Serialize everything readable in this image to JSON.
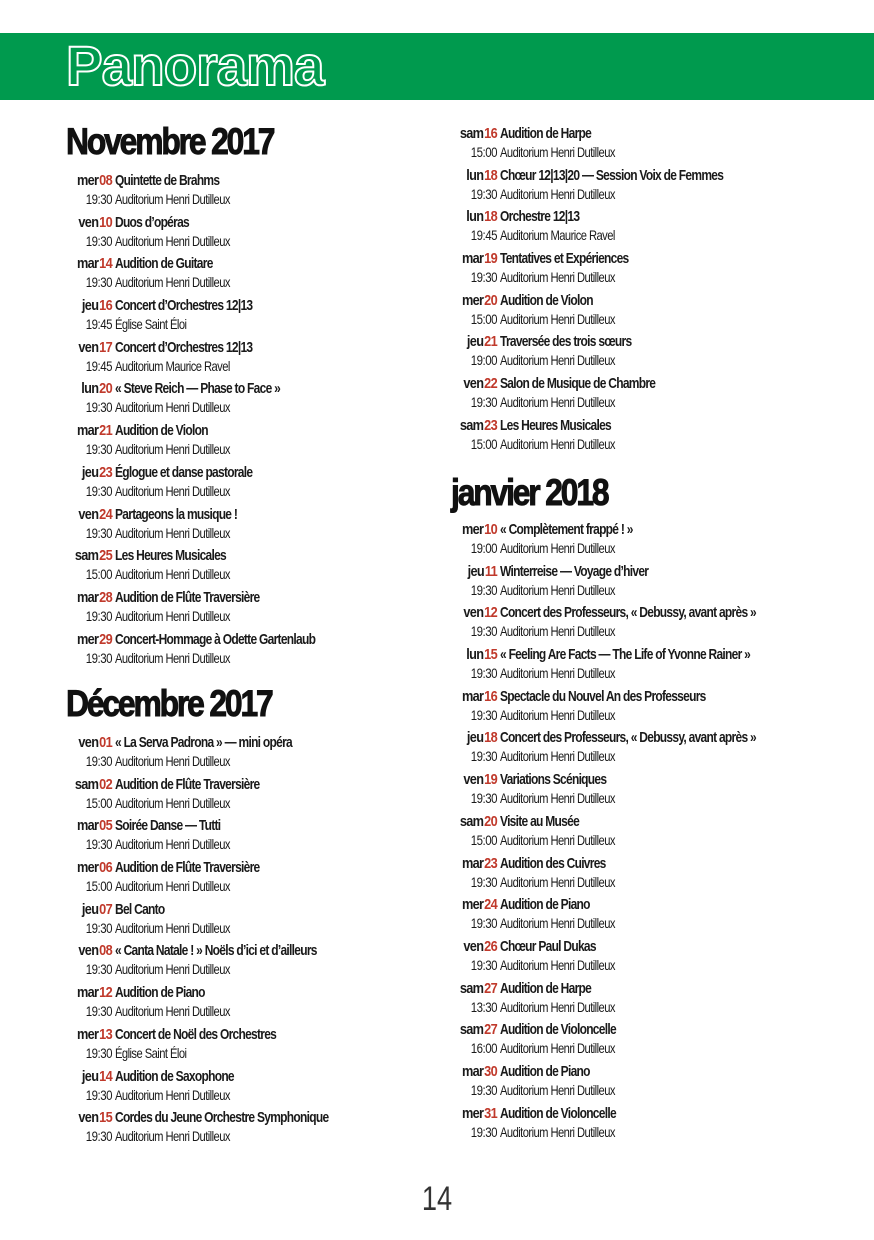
{
  "header": {
    "title": "Panorama",
    "band_color": "#009a4e",
    "date_color": "#c0392b"
  },
  "page_number": "14",
  "months": [
    {
      "title": "Novembre 2017",
      "events": [
        {
          "day": "mer",
          "num": "08",
          "title": "Quintette de Brahms",
          "time": "19:30",
          "venue": "Auditorium Henri Dutilleux"
        },
        {
          "day": "ven",
          "num": "10",
          "title": "Duos d’opéras",
          "time": "19:30",
          "venue": "Auditorium Henri Dutilleux"
        },
        {
          "day": "mar",
          "num": "14",
          "title": "Audition de Guitare",
          "time": "19:30",
          "venue": "Auditorium Henri Dutilleux"
        },
        {
          "day": "jeu",
          "num": "16",
          "title": "Concert d’Orchestres 12|13",
          "time": "19:45",
          "venue": "Église Saint Éloi"
        },
        {
          "day": "ven",
          "num": "17",
          "title": "Concert d’Orchestres 12|13",
          "time": "19:45",
          "venue": "Auditorium Maurice Ravel"
        },
        {
          "day": "lun",
          "num": "20",
          "title": "« Steve Reich — Phase to Face »",
          "time": "19:30",
          "venue": "Auditorium Henri Dutilleux"
        },
        {
          "day": "mar",
          "num": "21",
          "title": "Audition de Violon",
          "time": "19:30",
          "venue": "Auditorium Henri Dutilleux"
        },
        {
          "day": "jeu",
          "num": "23",
          "title": "Églogue et danse pastorale",
          "time": "19:30",
          "venue": "Auditorium Henri Dutilleux"
        },
        {
          "day": "ven",
          "num": "24",
          "title": "Partageons la musique !",
          "time": "19:30",
          "venue": "Auditorium Henri Dutilleux"
        },
        {
          "day": "sam",
          "num": "25",
          "title": "Les Heures Musicales",
          "time": "15:00",
          "venue": "Auditorium Henri Dutilleux"
        },
        {
          "day": "mar",
          "num": "28",
          "title": "Audition de Flûte Traversière",
          "time": "19:30",
          "venue": "Auditorium Henri Dutilleux"
        },
        {
          "day": "mer",
          "num": "29",
          "title": "Concert-Hommage à Odette Gartenlaub",
          "time": "19:30",
          "venue": "Auditorium Henri Dutilleux"
        }
      ]
    },
    {
      "title": "Décembre 2017",
      "events": [
        {
          "day": "ven",
          "num": "01",
          "title": "« La Serva Padrona » — mini opéra",
          "time": "19:30",
          "venue": "Auditorium Henri Dutilleux"
        },
        {
          "day": "sam",
          "num": "02",
          "title": "Audition de Flûte Traversière",
          "time": "15:00",
          "venue": "Auditorium Henri Dutilleux"
        },
        {
          "day": "mar",
          "num": "05",
          "title": "Soirée Danse — Tutti",
          "time": "19:30",
          "venue": "Auditorium Henri Dutilleux"
        },
        {
          "day": "mer",
          "num": "06",
          "title": "Audition de Flûte Traversière",
          "time": "15:00",
          "venue": "Auditorium Henri Dutilleux"
        },
        {
          "day": "jeu",
          "num": "07",
          "title": "Bel Canto",
          "time": "19:30",
          "venue": "Auditorium Henri Dutilleux"
        },
        {
          "day": "ven",
          "num": "08",
          "title": "« Canta Natale ! » Noëls d’ici et d’ailleurs",
          "time": "19:30",
          "venue": "Auditorium Henri Dutilleux"
        },
        {
          "day": "mar",
          "num": "12",
          "title": "Audition de Piano",
          "time": "19:30",
          "venue": "Auditorium Henri Dutilleux"
        },
        {
          "day": "mer",
          "num": "13",
          "title": "Concert de Noël des Orchestres",
          "time": "19:30",
          "venue": "Église Saint Éloi"
        },
        {
          "day": "jeu",
          "num": "14",
          "title": "Audition de Saxophone",
          "time": "19:30",
          "venue": "Auditorium Henri Dutilleux"
        },
        {
          "day": "ven",
          "num": "15",
          "title": "Cordes du Jeune Orchestre Symphonique",
          "time": "19:30",
          "venue": "Auditorium Henri Dutilleux"
        }
      ]
    },
    {
      "title": "",
      "events": [
        {
          "day": "sam",
          "num": "16",
          "title": "Audition de Harpe",
          "time": "15:00",
          "venue": "Auditorium Henri Dutilleux"
        },
        {
          "day": "lun",
          "num": "18",
          "title": "Chœur 12|13|20 — Session Voix de Femmes",
          "time": "19:30",
          "venue": "Auditorium Henri Dutilleux"
        },
        {
          "day": "lun",
          "num": "18",
          "title": "Orchestre 12|13",
          "time": "19:45",
          "venue": "Auditorium Maurice Ravel"
        },
        {
          "day": "mar",
          "num": "19",
          "title": "Tentatives et Expériences",
          "time": "19:30",
          "venue": "Auditorium Henri Dutilleux"
        },
        {
          "day": "mer",
          "num": "20",
          "title": "Audition de Violon",
          "time": "15:00",
          "venue": "Auditorium Henri Dutilleux"
        },
        {
          "day": "jeu",
          "num": "21",
          "title": "Traversée des trois sœurs",
          "time": "19:00",
          "venue": "Auditorium Henri Dutilleux"
        },
        {
          "day": "ven",
          "num": "22",
          "title": "Salon de Musique de Chambre",
          "time": "19:30",
          "venue": "Auditorium Henri Dutilleux"
        },
        {
          "day": "sam",
          "num": "23",
          "title": "Les Heures Musicales",
          "time": "15:00",
          "venue": "Auditorium Henri Dutilleux"
        }
      ]
    },
    {
      "title": "janvier 2018",
      "events": [
        {
          "day": "mer",
          "num": "10",
          "title": "« Complètement frappé ! »",
          "time": "19:00",
          "venue": "Auditorium Henri Dutilleux"
        },
        {
          "day": "jeu",
          "num": "11",
          "title": "Winterreise — Voyage d’hiver",
          "time": "19:30",
          "venue": "Auditorium Henri Dutilleux"
        },
        {
          "day": "ven",
          "num": "12",
          "title": "Concert des Professeurs, « Debussy, avant après »",
          "time": "19:30",
          "venue": "Auditorium Henri Dutilleux"
        },
        {
          "day": "lun",
          "num": "15",
          "title": "« Feeling Are Facts — The Life of Yvonne Rainer »",
          "time": "19:30",
          "venue": "Auditorium Henri Dutilleux"
        },
        {
          "day": "mar",
          "num": "16",
          "title": "Spectacle du Nouvel An des Professeurs",
          "time": "19:30",
          "venue": "Auditorium Henri Dutilleux"
        },
        {
          "day": "jeu",
          "num": "18",
          "title": "Concert des Professeurs, « Debussy, avant après »",
          "time": "19:30",
          "venue": "Auditorium Henri Dutilleux"
        },
        {
          "day": "ven",
          "num": "19",
          "title": "Variations Scéniques",
          "time": "19:30",
          "venue": "Auditorium Henri Dutilleux"
        },
        {
          "day": "sam",
          "num": "20",
          "title": "Visite au Musée",
          "time": "15:00",
          "venue": "Auditorium Henri Dutilleux"
        },
        {
          "day": "mar",
          "num": "23",
          "title": "Audition des Cuivres",
          "time": "19:30",
          "venue": "Auditorium Henri Dutilleux"
        },
        {
          "day": "mer",
          "num": "24",
          "title": "Audition de Piano",
          "time": "19:30",
          "venue": "Auditorium Henri Dutilleux"
        },
        {
          "day": "ven",
          "num": "26",
          "title": "Chœur Paul Dukas",
          "time": "19:30",
          "venue": "Auditorium Henri Dutilleux"
        },
        {
          "day": "sam",
          "num": "27",
          "title": "Audition de Harpe",
          "time": "13:30",
          "venue": "Auditorium Henri Dutilleux"
        },
        {
          "day": "sam",
          "num": "27",
          "title": "Audition de Violoncelle",
          "time": "16:00",
          "venue": "Auditorium Henri Dutilleux"
        },
        {
          "day": "mar",
          "num": "30",
          "title": "Audition de Piano",
          "time": "19:30",
          "venue": "Auditorium Henri Dutilleux"
        },
        {
          "day": "mer",
          "num": "31",
          "title": "Audition de Violoncelle",
          "time": "19:30",
          "venue": "Auditorium Henri Dutilleux"
        }
      ]
    }
  ]
}
